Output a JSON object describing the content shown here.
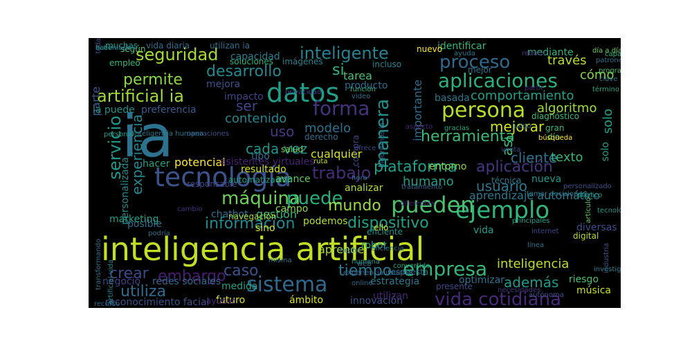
{
  "wordcloud": {
    "background": "#000000",
    "words": [
      {
        "text": "inteligencia artificial",
        "color": "#c2df23"
      },
      {
        "text": "ia",
        "color": "#2c728e"
      },
      {
        "text": "tecnología",
        "color": "#3b528b"
      },
      {
        "text": "datos",
        "color": "#1f9e89"
      },
      {
        "text": "sistema",
        "color": "#31688e"
      },
      {
        "text": "persona",
        "color": "#b5de2b"
      },
      {
        "text": "ejemplo",
        "color": "#31b57b"
      },
      {
        "text": "pueden",
        "color": "#4ac16d"
      },
      {
        "text": "empresa",
        "color": "#35b779"
      },
      {
        "text": "aplicaciones",
        "color": "#2db27d"
      },
      {
        "text": "forma",
        "color": "#46327e"
      },
      {
        "text": "máquina",
        "color": "#6ece58"
      },
      {
        "text": "puede",
        "color": "#26ad81"
      },
      {
        "text": "vida cotidiana",
        "color": "#482878"
      },
      {
        "text": "servicio",
        "color": "#1f988b"
      },
      {
        "text": "manera",
        "color": "#21918c"
      },
      {
        "text": "artificial ia",
        "color": "#a0da39"
      },
      {
        "text": "proceso",
        "color": "#31688e"
      },
      {
        "text": "inteligente",
        "color": "#26828e"
      },
      {
        "text": "seguridad",
        "color": "#a5db36"
      },
      {
        "text": "información",
        "color": "#23898e"
      },
      {
        "text": "trabajo",
        "color": "#472c7a"
      },
      {
        "text": "dispositivo",
        "color": "#1fa287"
      },
      {
        "text": "herramienta",
        "color": "#3aba76"
      },
      {
        "text": "plataforma",
        "color": "#1f9e89"
      },
      {
        "text": "mundo",
        "color": "#9dd93b"
      },
      {
        "text": "mejorar",
        "color": "#d0e11c"
      },
      {
        "text": "aplicación",
        "color": "#453781"
      },
      {
        "text": "experiencia",
        "color": "#25858e"
      },
      {
        "text": "usuario",
        "color": "#2a778e"
      },
      {
        "text": "cliente",
        "color": "#2c728e"
      },
      {
        "text": "desarrollo",
        "color": "#23898e"
      },
      {
        "text": "permite",
        "color": "#8bd646"
      },
      {
        "text": "cada vez",
        "color": "#1f958b"
      },
      {
        "text": "contenido",
        "color": "#24868e"
      },
      {
        "text": "si",
        "color": "#31b57b"
      },
      {
        "text": "embargo",
        "color": "#481f70"
      },
      {
        "text": "tiempo",
        "color": "#2a788e"
      },
      {
        "text": "crear",
        "color": "#3e4989"
      },
      {
        "text": "utiliza",
        "color": "#2f6c8e"
      },
      {
        "text": "caso",
        "color": "#3b528b"
      },
      {
        "text": "además",
        "color": "#1f9a8a"
      },
      {
        "text": "inteligencia",
        "color": "#bddf26"
      },
      {
        "text": "comportamiento",
        "color": "#1fa088"
      },
      {
        "text": "uso",
        "color": "#443a83"
      },
      {
        "text": "ser",
        "color": "#3f4788"
      },
      {
        "text": "algoritmo",
        "color": "#a2da37"
      },
      {
        "text": "modelo",
        "color": "#2c728e"
      },
      {
        "text": "humano",
        "color": "#1f9e89"
      },
      {
        "text": "texto",
        "color": "#35b779"
      },
      {
        "text": "así",
        "color": "#3aba76"
      },
      {
        "text": "solo",
        "color": "#1fa188"
      },
      {
        "text": "cómo",
        "color": "#86d549"
      },
      {
        "text": "través",
        "color": "#b8de29"
      },
      {
        "text": "importante",
        "color": "#2e6e8e"
      },
      {
        "text": "parte",
        "color": "#38598c"
      },
      {
        "text": "tarea",
        "color": "#4ac16d"
      },
      {
        "text": "gestión",
        "color": "#35b779"
      },
      {
        "text": "personalizada",
        "color": "#23898e"
      },
      {
        "text": "posible",
        "color": "#2e6f8e"
      },
      {
        "text": "aprender",
        "color": "#addc30"
      },
      {
        "text": "potencial",
        "color": "#fde725"
      },
      {
        "text": "cualquier",
        "color": "#d8e219"
      },
      {
        "text": "aprendizaje automático",
        "color": "#2a788e"
      },
      {
        "text": "entorno",
        "color": "#8fd744"
      },
      {
        "text": "mejora",
        "color": "#3b528b"
      },
      {
        "text": "capacidad",
        "color": "#277f8e"
      },
      {
        "text": "ia puede",
        "color": "#21918c"
      },
      {
        "text": "preferencia",
        "color": "#365c8d"
      },
      {
        "text": "futuro",
        "color": "#dde318"
      },
      {
        "text": "medida",
        "color": "#1fa187"
      },
      {
        "text": "asistentes virtuales",
        "color": "#482173"
      },
      {
        "text": "chatbot",
        "color": "#2c728e"
      },
      {
        "text": "robot",
        "color": "#22a785"
      },
      {
        "text": "basada",
        "color": "#2a788e"
      },
      {
        "text": "según",
        "color": "#54c568"
      },
      {
        "text": "identificar",
        "color": "#35b779"
      },
      {
        "text": "mediante",
        "color": "#2db27d"
      },
      {
        "text": "impacto",
        "color": "#414487"
      },
      {
        "text": "producto",
        "color": "#2f6c8e"
      },
      {
        "text": "avance",
        "color": "#65cb5e"
      },
      {
        "text": "tipo",
        "color": "#2e6e8e"
      },
      {
        "text": "nueva",
        "color": "#1f988b"
      },
      {
        "text": "técnica",
        "color": "#ceeo1d"
      },
      {
        "text": "riesgo",
        "color": "#4ac16d"
      },
      {
        "text": "optimizar",
        "color": "#2c728e"
      },
      {
        "text": "negocio",
        "color": "#424086"
      },
      {
        "text": "redes sociales",
        "color": "#31688e"
      },
      {
        "text": "reconocimiento facial",
        "color": "#3b528b"
      },
      {
        "text": "innovación",
        "color": "#3b528b"
      },
      {
        "text": "ámbito",
        "color": "#dfe318"
      },
      {
        "text": "utilizan",
        "color": "#482878"
      },
      {
        "text": "estrategia",
        "color": "#2a788e"
      },
      {
        "text": "diversas",
        "color": "#3e4c8a"
      },
      {
        "text": "vida",
        "color": "#1f9e89"
      },
      {
        "text": "podemos",
        "color": "#b2dd2d"
      },
      {
        "text": "campo",
        "color": "#8bd646"
      },
      {
        "text": "sino",
        "color": "#d2e21b"
      },
      {
        "text": "marketing",
        "color": "#1fa188"
      },
      {
        "text": "hacer",
        "color": "#20a386"
      },
      {
        "text": "resultado",
        "color": "#d5e21a"
      },
      {
        "text": "navegación",
        "color": "#a8db34"
      },
      {
        "text": "solo",
        "color": "#1fa188"
      },
      {
        "text": "muchas",
        "color": "#1f9a8a"
      },
      {
        "text": "vida diaria",
        "color": "#2e6e8e"
      },
      {
        "text": "utilizan ia",
        "color": "#2d708e"
      },
      {
        "text": "soluciones",
        "color": "#2db27d"
      },
      {
        "text": "imágenes",
        "color": "#26828e"
      },
      {
        "text": "incluso",
        "color": "#24878e"
      },
      {
        "text": "nuevo",
        "color": "#fde725"
      },
      {
        "text": "mejor",
        "color": "#2c728e"
      },
      {
        "text": "analizar",
        "color": "#b2dd2d"
      },
      {
        "text": "tratamiento",
        "color": "#31688e"
      },
      {
        "text": "música",
        "color": "#c5e021"
      },
      {
        "text": "digital",
        "color": "#b8de29"
      },
      {
        "text": "salud",
        "color": "#7fd34e"
      },
      {
        "text": "ayudar",
        "color": "#482878"
      },
      {
        "text": "presente",
        "color": "#3e4989"
      },
      {
        "text": "necesidades",
        "color": "#46337e"
      },
      {
        "text": "eficiente",
        "color": "#1f948c"
      },
      {
        "text": "compra",
        "color": "#3e4989"
      },
      {
        "text": "diagnóstico",
        "color": "#37b878"
      },
      {
        "text": "día",
        "color": "#5ec962"
      },
      {
        "text": "gran",
        "color": "#37b878"
      },
      {
        "text": "gracias",
        "color": "#21a585"
      },
      {
        "text": "aspecto",
        "color": "#482475"
      },
      {
        "text": "algoritmos ia",
        "color": "#30688e"
      },
      {
        "text": "diferentes",
        "color": "#482071"
      },
      {
        "text": "tomar decisiones",
        "color": "#2a788e"
      },
      {
        "text": "responsable",
        "color": "#404688"
      },
      {
        "text": "automatización",
        "color": "#1f9e89"
      },
      {
        "text": "derecho",
        "color": "#2e6e8e"
      },
      {
        "text": "ello",
        "color": "#c8e020"
      },
      {
        "text": "función",
        "color": "#27ad81"
      },
      {
        "text": "video",
        "color": "#2e6e8e"
      },
      {
        "text": "empleo",
        "color": "#35b779"
      },
      {
        "text": "privacidad",
        "color": "#3f4788"
      },
      {
        "text": "ayuda",
        "color": "#2a768e"
      },
      {
        "text": "reducir",
        "color": "#46327e"
      },
      {
        "text": "patrones",
        "color": "#2e6f8e"
      },
      {
        "text": "clave",
        "color": "#2d718e"
      },
      {
        "text": "programa",
        "color": "#4cc26c"
      },
      {
        "text": "término",
        "color": "#22a884"
      },
      {
        "text": "día a día",
        "color": "#6ece58"
      },
      {
        "text": "capaces",
        "color": "#32b67a"
      },
      {
        "text": "partir",
        "color": "#482475"
      },
      {
        "text": "transformando",
        "color": "#2d708e"
      },
      {
        "text": "artificial vida",
        "color": "#24868e"
      },
      {
        "text": "industria",
        "color": "#3b528b"
      },
      {
        "text": "investigación",
        "color": "#26818e"
      },
      {
        "text": "autónoma",
        "color": "#3b528b"
      },
      {
        "text": "recurso",
        "color": "#31688e"
      },
      {
        "text": "experiencia usuario",
        "color": "#31688e"
      },
      {
        "text": "eficiencia",
        "color": "#2d708e"
      },
      {
        "text": "hecho",
        "color": "#2f6b8e"
      },
      {
        "text": "respuesta",
        "color": "#2e6e8e"
      },
      {
        "text": "ofrece",
        "color": "#3f4788"
      },
      {
        "text": "web",
        "color": "#2a788e"
      },
      {
        "text": "ruta",
        "color": "#c5e021"
      },
      {
        "text": "hora",
        "color": "#2e6f8e"
      },
      {
        "text": "convertido",
        "color": "#20a486"
      },
      {
        "text": "venta",
        "color": "#3e4a89"
      },
      {
        "text": "juego",
        "color": "#2e6e8e"
      },
      {
        "text": "búsqueda",
        "color": "#fde725"
      },
      {
        "text": "tecnológico",
        "color": "#1f9a8a"
      },
      {
        "text": "personalizado",
        "color": "#3b528b"
      },
      {
        "text": "artículo",
        "color": "#5ec962"
      },
      {
        "text": "público",
        "color": "#1fa088"
      },
      {
        "text": "podría",
        "color": "#2e6e8e"
      },
      {
        "text": "humana",
        "color": "#1f988b"
      },
      {
        "text": "operaciones",
        "color": "#3b528b"
      },
      {
        "text": "inteligencia humana",
        "color": "#2a788e"
      },
      {
        "text": "principales",
        "color": "#1fa088"
      },
      {
        "text": "internet",
        "color": "#3e4989"
      },
      {
        "text": "línea",
        "color": "#2c728e"
      },
      {
        "text": "personal",
        "color": "#1f9e89"
      },
      {
        "text": "online",
        "color": "#31688e"
      },
      {
        "text": "misma",
        "color": "#2d718e"
      },
      {
        "text": "cambio",
        "color": "#46327e"
      },
      {
        "text": "toda",
        "color": "#3b528b"
      },
      {
        "text": "hace",
        "color": "#20a486"
      },
      {
        "text": "actividades",
        "color": "#2a788e"
      }
    ]
  }
}
